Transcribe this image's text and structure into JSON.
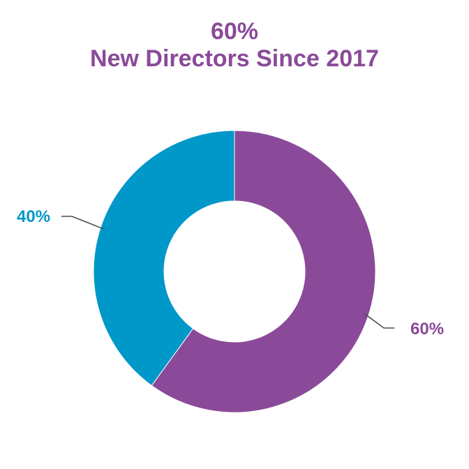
{
  "title": {
    "line1": "60%",
    "line2": "New Directors Since 2017",
    "color": "#8a4a99"
  },
  "chart_data": {
    "type": "pie",
    "donut": true,
    "start_angle_deg": 0,
    "direction": "clockwise",
    "categories": [
      "",
      ""
    ],
    "values": [
      60,
      40
    ],
    "colors": [
      "#8a4a99",
      "#0097c9"
    ],
    "data_labels": [
      "60%",
      "40%"
    ],
    "label_colors": [
      "#8a4a99",
      "#0097c9"
    ],
    "leader_line_color": "#4d4d4d",
    "legend": "none"
  }
}
